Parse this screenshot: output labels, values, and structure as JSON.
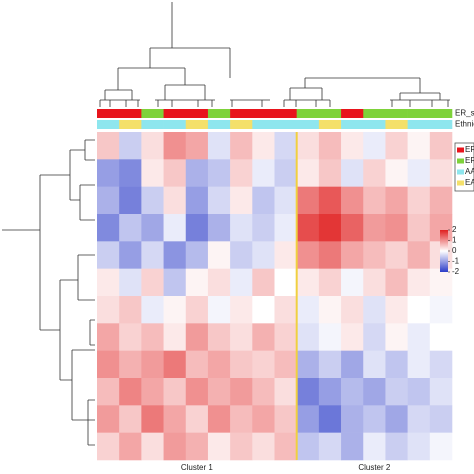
{
  "chart_data": {
    "type": "heatmap",
    "row_annotation_labels": [
      "ER_status",
      "Ethnic grou"
    ],
    "annotations": [
      {
        "name": "ER_status",
        "values": [
          "ER+",
          "ER+",
          "ER-",
          "ER+",
          "ER+",
          "ER-",
          "ER+",
          "ER+",
          "ER+",
          "ER-",
          "ER-",
          "ER+",
          "ER-",
          "ER-",
          "ER-",
          "ER-"
        ]
      },
      {
        "name": "Ethnic group",
        "values": [
          "AA",
          "EA",
          "AA",
          "AA",
          "EA",
          "AA",
          "EA",
          "AA",
          "AA",
          "AA",
          "EA",
          "AA",
          "AA",
          "EA",
          "AA",
          "AA"
        ]
      }
    ],
    "legend": [
      {
        "name": "ER+",
        "color": "#e8141c"
      },
      {
        "name": "ER-",
        "color": "#7ed23a"
      },
      {
        "name": "AA",
        "color": "#8ee6ee"
      },
      {
        "name": "EA",
        "color": "#f4e06a"
      }
    ],
    "clusters": [
      {
        "label": "Cluster 1",
        "columns": 9
      },
      {
        "label": "Cluster 2",
        "columns": 7
      }
    ],
    "divider_color": "#f0d040",
    "z": [
      [
        0.5,
        -0.5,
        0.3,
        1.0,
        0.8,
        -0.3,
        0.6,
        0.2,
        -0.4,
        0.3,
        0.6,
        0.2,
        -0.2,
        0.4,
        0.1,
        0.5
      ],
      [
        -1.0,
        -1.2,
        0.2,
        0.5,
        -0.8,
        -0.6,
        0.4,
        -0.2,
        -0.5,
        0.2,
        0.5,
        -0.3,
        0.4,
        0.1,
        -0.2,
        0.3
      ],
      [
        -0.8,
        -1.3,
        -0.5,
        0.3,
        -1.0,
        -0.4,
        0.2,
        -0.6,
        -0.3,
        1.2,
        1.5,
        1.0,
        0.6,
        0.8,
        0.4,
        0.7
      ],
      [
        -1.2,
        -0.6,
        -0.9,
        -0.2,
        -1.3,
        -0.8,
        -0.3,
        -0.5,
        -0.2,
        1.6,
        1.8,
        1.4,
        0.9,
        1.0,
        0.5,
        0.8
      ],
      [
        -0.5,
        -1.0,
        -0.4,
        -1.1,
        -0.7,
        0.1,
        -0.5,
        -0.3,
        0.2,
        1.0,
        1.2,
        0.8,
        0.6,
        0.4,
        0.7,
        0.3
      ],
      [
        0.2,
        -0.3,
        0.4,
        -0.6,
        0.1,
        0.3,
        -0.2,
        0.5,
        0.0,
        0.2,
        0.4,
        -0.1,
        0.3,
        0.6,
        0.2,
        0.1
      ],
      [
        0.3,
        0.5,
        -0.2,
        0.1,
        0.4,
        -0.1,
        0.2,
        0.0,
        0.3,
        -0.2,
        0.1,
        0.3,
        -0.3,
        0.2,
        0.0,
        -0.1
      ],
      [
        0.8,
        0.4,
        0.6,
        0.2,
        0.9,
        0.5,
        0.3,
        0.7,
        0.4,
        -0.3,
        -0.1,
        0.2,
        -0.4,
        0.1,
        -0.2,
        0.0
      ],
      [
        1.0,
        0.7,
        0.9,
        1.2,
        0.6,
        0.8,
        0.5,
        0.4,
        0.6,
        -0.8,
        -0.5,
        -0.9,
        -0.3,
        -0.6,
        -0.2,
        -0.4
      ],
      [
        0.6,
        1.1,
        0.8,
        0.5,
        1.0,
        0.7,
        0.9,
        0.6,
        0.3,
        -1.3,
        -1.0,
        -0.7,
        -0.9,
        -0.5,
        -0.6,
        -0.3
      ],
      [
        0.9,
        0.5,
        1.2,
        0.8,
        0.4,
        1.0,
        0.6,
        0.8,
        0.5,
        -1.0,
        -1.4,
        -0.8,
        -0.6,
        -0.9,
        -0.4,
        -0.5
      ],
      [
        0.4,
        0.8,
        0.3,
        0.9,
        0.7,
        0.2,
        0.5,
        0.3,
        0.6,
        -0.6,
        -0.4,
        -0.8,
        -0.2,
        -0.5,
        -0.3,
        -0.1
      ]
    ],
    "zlim": [
      -2,
      2
    ],
    "zticks": [
      2,
      1,
      0,
      -1,
      -2
    ],
    "low_color": "#2c3cc8",
    "mid_color": "#ffffff",
    "high_color": "#e02020"
  }
}
